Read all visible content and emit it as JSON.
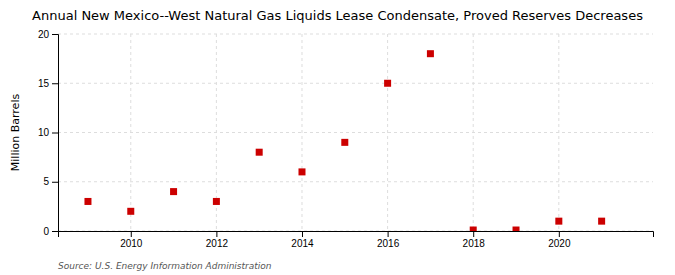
{
  "chart_data": {
    "type": "scatter",
    "title": "Annual New Mexico--West Natural Gas Liquids Lease Condensate, Proved Reserves Decreases",
    "ylabel": "Million Barrels",
    "annotations": [
      "Source: U.S. Energy Information Administration"
    ],
    "x": [
      2009,
      2010,
      2011,
      2012,
      2013,
      2014,
      2015,
      2016,
      2017,
      2018,
      2019,
      2020,
      2021
    ],
    "values": [
      3.0,
      2.0,
      4.0,
      3.0,
      8.0,
      6.0,
      9.0,
      15.0,
      18.0,
      0.1,
      0.1,
      1.0,
      1.0
    ],
    "color": "#cc0000",
    "marker": "square",
    "xlim": [
      2008.3,
      2022.2
    ],
    "xticks": [
      2010,
      2012,
      2014,
      2016,
      2018,
      2020
    ],
    "ylim": [
      0,
      20
    ],
    "yticks": [
      0,
      5,
      10,
      15,
      20
    ],
    "grid": true
  }
}
